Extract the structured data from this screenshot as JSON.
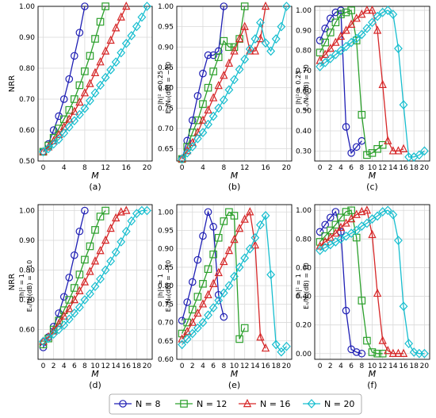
{
  "chart_data": [
    {
      "panel": "(a)",
      "type": "line",
      "xlabel": "M",
      "ylabel": "NRR",
      "annotation": "",
      "ylim": [
        0.5,
        1.0
      ],
      "yticks": [
        "0.50",
        "0.60",
        "0.70",
        "0.80",
        "0.90",
        "1.00"
      ],
      "xlim": [
        -1,
        21
      ],
      "xticks": [
        "0",
        "4",
        "8",
        "12",
        "16",
        "20"
      ],
      "series": [
        {
          "x": [
            0,
            1,
            2,
            3,
            4,
            5,
            6,
            7,
            8
          ],
          "y": [
            0.53,
            0.555,
            0.6,
            0.645,
            0.7,
            0.765,
            0.84,
            0.915,
            1.0
          ]
        },
        {
          "x": [
            0,
            1,
            2,
            3,
            4,
            5,
            6,
            7,
            8,
            9,
            10,
            11,
            12
          ],
          "y": [
            0.53,
            0.55,
            0.575,
            0.605,
            0.635,
            0.665,
            0.7,
            0.745,
            0.79,
            0.84,
            0.895,
            0.95,
            1.0
          ]
        },
        {
          "x": [
            0,
            1,
            2,
            3,
            4,
            5,
            6,
            7,
            8,
            9,
            10,
            11,
            12,
            13,
            14,
            15,
            16
          ],
          "y": [
            0.53,
            0.545,
            0.565,
            0.585,
            0.61,
            0.635,
            0.66,
            0.69,
            0.72,
            0.75,
            0.785,
            0.82,
            0.855,
            0.89,
            0.93,
            0.965,
            1.0
          ]
        },
        {
          "x": [
            0,
            1,
            2,
            3,
            4,
            5,
            6,
            7,
            8,
            9,
            10,
            11,
            12,
            13,
            14,
            15,
            16,
            17,
            18,
            19,
            20
          ],
          "y": [
            0.53,
            0.54,
            0.555,
            0.57,
            0.59,
            0.61,
            0.63,
            0.65,
            0.67,
            0.695,
            0.72,
            0.745,
            0.77,
            0.795,
            0.82,
            0.85,
            0.88,
            0.905,
            0.935,
            0.965,
            1.0
          ]
        }
      ]
    },
    {
      "panel": "(b)",
      "type": "line",
      "xlabel": "M",
      "ylabel": "",
      "annotation": "|h|² = 0.25\nEₛ/N₀(dB) = −10",
      "ylim": [
        0.62,
        1.0
      ],
      "yticks": [
        "0.65",
        "0.70",
        "0.75",
        "0.80",
        "0.85",
        "0.90",
        "0.95",
        "1.00"
      ],
      "xlim": [
        -1,
        21
      ],
      "xticks": [
        "0",
        "4",
        "8",
        "12",
        "16",
        "20"
      ],
      "series": [
        {
          "x": [
            0,
            1,
            2,
            3,
            4,
            5,
            6,
            7,
            8
          ],
          "y": [
            0.625,
            0.67,
            0.72,
            0.78,
            0.835,
            0.88,
            0.88,
            0.89,
            1.0
          ]
        },
        {
          "x": [
            0,
            1,
            2,
            3,
            4,
            5,
            6,
            7,
            8,
            9,
            10,
            11,
            12
          ],
          "y": [
            0.625,
            0.655,
            0.69,
            0.72,
            0.76,
            0.8,
            0.84,
            0.875,
            0.915,
            0.9,
            0.9,
            0.92,
            1.0
          ]
        },
        {
          "x": [
            0,
            1,
            2,
            3,
            4,
            5,
            6,
            7,
            8,
            9,
            10,
            11,
            12,
            13,
            14,
            15,
            16
          ],
          "y": [
            0.625,
            0.645,
            0.665,
            0.69,
            0.72,
            0.745,
            0.775,
            0.805,
            0.83,
            0.86,
            0.89,
            0.92,
            0.95,
            0.89,
            0.89,
            0.92,
            1.0
          ]
        },
        {
          "x": [
            0,
            1,
            2,
            3,
            4,
            5,
            6,
            7,
            8,
            9,
            10,
            11,
            12,
            13,
            14,
            15,
            16,
            17,
            18,
            19,
            20
          ],
          "y": [
            0.625,
            0.64,
            0.655,
            0.675,
            0.69,
            0.71,
            0.73,
            0.75,
            0.77,
            0.795,
            0.82,
            0.845,
            0.87,
            0.895,
            0.92,
            0.96,
            0.91,
            0.89,
            0.92,
            0.95,
            1.0
          ]
        }
      ]
    },
    {
      "panel": "(c)",
      "type": "line",
      "xlabel": "M",
      "ylabel": "",
      "annotation": "|h|² = 0.25\nEₛ/N₀(dB) = 10",
      "ylim": [
        0.25,
        1.02
      ],
      "yticks": [
        "0.30",
        "0.40",
        "0.50",
        "0.60",
        "0.70",
        "0.80",
        "0.90",
        "1.00"
      ],
      "xlim": [
        -1,
        21
      ],
      "xticks": [
        "0",
        "2",
        "4",
        "6",
        "8",
        "10",
        "12",
        "14",
        "16",
        "18",
        "20"
      ],
      "series": [
        {
          "x": [
            0,
            1,
            2,
            3,
            4,
            5,
            6,
            7,
            8
          ],
          "y": [
            0.85,
            0.91,
            0.96,
            0.99,
            1.0,
            0.42,
            0.29,
            0.32,
            0.35
          ]
        },
        {
          "x": [
            0,
            1,
            2,
            3,
            4,
            5,
            6,
            7,
            8,
            9,
            10,
            11,
            12
          ],
          "y": [
            0.79,
            0.84,
            0.89,
            0.94,
            0.98,
            0.99,
            1.0,
            0.85,
            0.48,
            0.28,
            0.29,
            0.31,
            0.33
          ]
        },
        {
          "x": [
            0,
            1,
            2,
            3,
            4,
            5,
            6,
            7,
            8,
            9,
            10,
            11,
            12,
            13,
            14,
            15,
            16
          ],
          "y": [
            0.75,
            0.78,
            0.81,
            0.84,
            0.87,
            0.9,
            0.93,
            0.96,
            0.98,
            1.0,
            1.0,
            0.9,
            0.63,
            0.35,
            0.3,
            0.3,
            0.31
          ]
        },
        {
          "x": [
            0,
            1,
            2,
            3,
            4,
            5,
            6,
            7,
            8,
            9,
            10,
            11,
            12,
            13,
            14,
            15,
            16,
            17,
            18,
            19,
            20
          ],
          "y": [
            0.72,
            0.74,
            0.76,
            0.78,
            0.8,
            0.82,
            0.84,
            0.86,
            0.88,
            0.91,
            0.94,
            0.97,
            0.99,
            1.0,
            0.98,
            0.81,
            0.53,
            0.27,
            0.27,
            0.28,
            0.3
          ]
        }
      ]
    },
    {
      "panel": "(d)",
      "type": "line",
      "xlabel": "M",
      "ylabel": "NRR",
      "annotation": "|h|² = 1\nEₛ/N₀(dB) = −10",
      "ylim": [
        0.5,
        1.02
      ],
      "yticks": [
        "0.60",
        "0.70",
        "0.80",
        "0.90",
        "1.00"
      ],
      "xlim": [
        -1,
        21
      ],
      "xticks": [
        "0",
        "2",
        "4",
        "6",
        "8",
        "10",
        "12",
        "14",
        "16",
        "18",
        "20"
      ],
      "series": [
        {
          "x": [
            0,
            1,
            2,
            3,
            4,
            5,
            6,
            7,
            8
          ],
          "y": [
            0.54,
            0.575,
            0.61,
            0.655,
            0.71,
            0.775,
            0.85,
            0.93,
            1.0
          ]
        },
        {
          "x": [
            0,
            1,
            2,
            3,
            4,
            5,
            6,
            7,
            8,
            9,
            10,
            11,
            12
          ],
          "y": [
            0.55,
            0.57,
            0.6,
            0.63,
            0.665,
            0.7,
            0.74,
            0.785,
            0.835,
            0.88,
            0.935,
            0.98,
            1.0
          ]
        },
        {
          "x": [
            0,
            1,
            2,
            3,
            4,
            5,
            6,
            7,
            8,
            9,
            10,
            11,
            12,
            13,
            14,
            15,
            16
          ],
          "y": [
            0.56,
            0.575,
            0.595,
            0.62,
            0.645,
            0.67,
            0.7,
            0.73,
            0.76,
            0.795,
            0.83,
            0.865,
            0.9,
            0.94,
            0.975,
            0.995,
            1.0
          ]
        },
        {
          "x": [
            0,
            1,
            2,
            3,
            4,
            5,
            6,
            7,
            8,
            9,
            10,
            11,
            12,
            13,
            14,
            15,
            16,
            17,
            18,
            19,
            20
          ],
          "y": [
            0.56,
            0.57,
            0.585,
            0.6,
            0.615,
            0.635,
            0.655,
            0.675,
            0.7,
            0.72,
            0.745,
            0.77,
            0.8,
            0.83,
            0.86,
            0.895,
            0.93,
            0.965,
            0.99,
            1.0,
            1.0
          ]
        }
      ]
    },
    {
      "panel": "(e)",
      "type": "line",
      "xlabel": "M",
      "ylabel": "",
      "annotation": "|h|² = 1\nEₛ/N₀(dB) = −10",
      "ylim": [
        0.6,
        1.02
      ],
      "yticks": [
        "0.60",
        "0.65",
        "0.70",
        "0.75",
        "0.80",
        "0.85",
        "0.90",
        "0.95",
        "1.00"
      ],
      "xlim": [
        -1,
        21
      ],
      "xticks": [
        "0",
        "2",
        "4",
        "6",
        "8",
        "10",
        "12",
        "14",
        "16",
        "18",
        "20"
      ],
      "series": [
        {
          "x": [
            0,
            1,
            2,
            3,
            4,
            5,
            6,
            7,
            8
          ],
          "y": [
            0.705,
            0.755,
            0.81,
            0.87,
            0.935,
            1.0,
            0.96,
            0.775,
            0.715
          ]
        },
        {
          "x": [
            0,
            1,
            2,
            3,
            4,
            5,
            6,
            7,
            8,
            9,
            10,
            11,
            12
          ],
          "y": [
            0.67,
            0.7,
            0.735,
            0.77,
            0.805,
            0.845,
            0.885,
            0.93,
            0.975,
            1.0,
            0.99,
            0.655,
            0.685
          ]
        },
        {
          "x": [
            0,
            1,
            2,
            3,
            4,
            5,
            6,
            7,
            8,
            9,
            10,
            11,
            12,
            13,
            14,
            15,
            16
          ],
          "y": [
            0.655,
            0.675,
            0.7,
            0.725,
            0.75,
            0.775,
            0.805,
            0.835,
            0.865,
            0.895,
            0.925,
            0.955,
            0.98,
            1.0,
            0.91,
            0.66,
            0.63
          ]
        },
        {
          "x": [
            0,
            1,
            2,
            3,
            4,
            5,
            6,
            7,
            8,
            9,
            10,
            11,
            12,
            13,
            14,
            15,
            16,
            17,
            18,
            19,
            20
          ],
          "y": [
            0.64,
            0.655,
            0.67,
            0.685,
            0.7,
            0.72,
            0.74,
            0.76,
            0.78,
            0.8,
            0.825,
            0.85,
            0.875,
            0.9,
            0.93,
            0.965,
            0.99,
            0.83,
            0.64,
            0.62,
            0.635
          ]
        }
      ]
    },
    {
      "panel": "(f)",
      "type": "line",
      "xlabel": "M",
      "ylabel": "",
      "annotation": "|h|² = 1\nEₛ/N₀(dB) = 10",
      "ylim": [
        -0.04,
        1.04
      ],
      "yticks": [
        "0.00",
        "0.20",
        "0.40",
        "0.60",
        "0.80",
        "1.00"
      ],
      "xlim": [
        -1,
        21
      ],
      "xticks": [
        "0",
        "2",
        "4",
        "6",
        "8",
        "10",
        "12",
        "14",
        "16",
        "18",
        "20"
      ],
      "series": [
        {
          "x": [
            0,
            1,
            2,
            3,
            4,
            5,
            6,
            7,
            8
          ],
          "y": [
            0.85,
            0.9,
            0.95,
            0.99,
            0.85,
            0.3,
            0.03,
            0.01,
            0.0
          ]
        },
        {
          "x": [
            0,
            1,
            2,
            3,
            4,
            5,
            6,
            7,
            8,
            9,
            10,
            11,
            12
          ],
          "y": [
            0.78,
            0.82,
            0.86,
            0.9,
            0.95,
            0.99,
            1.0,
            0.81,
            0.37,
            0.09,
            0.01,
            0.0,
            0.0
          ]
        },
        {
          "x": [
            0,
            1,
            2,
            3,
            4,
            5,
            6,
            7,
            8,
            9,
            10,
            11,
            12,
            13,
            14,
            15,
            16
          ],
          "y": [
            0.75,
            0.78,
            0.81,
            0.84,
            0.88,
            0.91,
            0.94,
            0.97,
            0.99,
            1.0,
            0.83,
            0.42,
            0.09,
            0.02,
            0.0,
            0.0,
            0.0
          ]
        },
        {
          "x": [
            0,
            1,
            2,
            3,
            4,
            5,
            6,
            7,
            8,
            9,
            10,
            11,
            12,
            13,
            14,
            15,
            16,
            17,
            18,
            19,
            20
          ],
          "y": [
            0.72,
            0.74,
            0.76,
            0.78,
            0.8,
            0.82,
            0.84,
            0.86,
            0.89,
            0.91,
            0.94,
            0.96,
            0.99,
            1.0,
            0.97,
            0.79,
            0.33,
            0.07,
            0.01,
            0.0,
            0.0
          ]
        }
      ]
    }
  ],
  "legend": [
    {
      "label": "N = 8",
      "color": "#1f1fb4",
      "marker": "circle"
    },
    {
      "label": "N = 12",
      "color": "#2ca02c",
      "marker": "square"
    },
    {
      "label": "N = 16",
      "color": "#d62728",
      "marker": "triangle"
    },
    {
      "label": "N = 20",
      "color": "#17becf",
      "marker": "diamond"
    }
  ]
}
